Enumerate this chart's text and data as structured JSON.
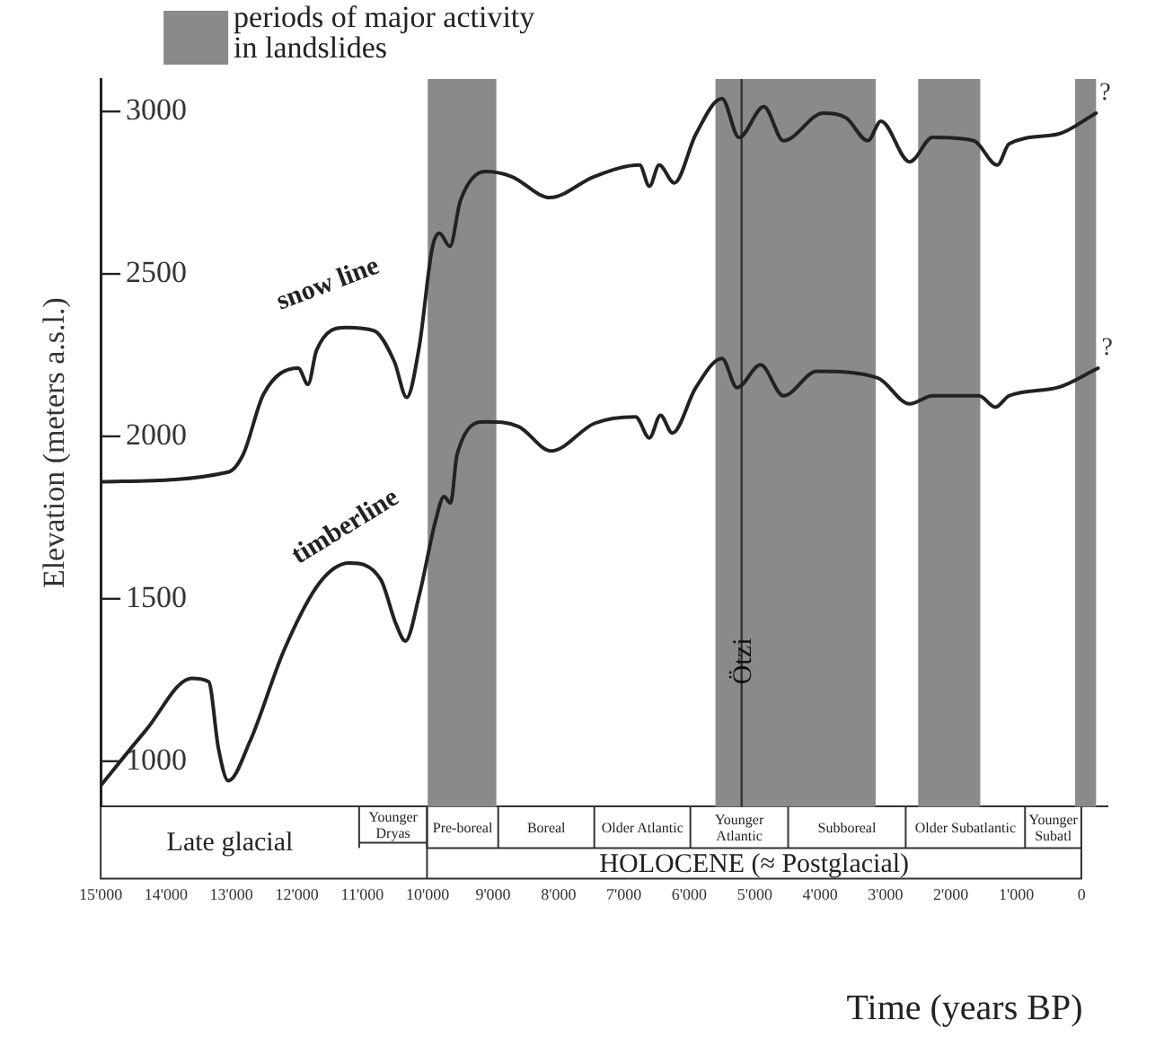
{
  "chart_data": {
    "type": "line",
    "xlabel": "Time (years BP)",
    "ylabel": "Elevation (meters a.s.l.)",
    "xlim": [
      15000,
      -400
    ],
    "ylim": [
      860,
      3100
    ],
    "xticks": [
      {
        "value": 15000,
        "label": "15'000"
      },
      {
        "value": 14000,
        "label": "14'000"
      },
      {
        "value": 13000,
        "label": "13'000"
      },
      {
        "value": 12000,
        "label": "12'000"
      },
      {
        "value": 11000,
        "label": "11'000"
      },
      {
        "value": 10000,
        "label": "10'000"
      },
      {
        "value": 9000,
        "label": "9'000"
      },
      {
        "value": 8000,
        "label": "8'000"
      },
      {
        "value": 7000,
        "label": "7'000"
      },
      {
        "value": 6000,
        "label": "6'000"
      },
      {
        "value": 5000,
        "label": "5'000"
      },
      {
        "value": 4000,
        "label": "4'000"
      },
      {
        "value": 3000,
        "label": "3'000"
      },
      {
        "value": 2000,
        "label": "2'000"
      },
      {
        "value": 1000,
        "label": "1'000"
      },
      0
    ],
    "yticks": [
      1000,
      1500,
      2000,
      2500,
      3000
    ],
    "grid": false,
    "legend": "top left",
    "series": [
      {
        "name": "snow line",
        "color": "#222222",
        "x": [
          15000,
          13050,
          12820,
          12510,
          11980,
          11830,
          11700,
          11250,
          10820,
          10510,
          10320,
          10130,
          9930,
          9820,
          9660,
          9500,
          9120,
          8720,
          8130,
          7450,
          6760,
          6610,
          6460,
          6230,
          5900,
          5500,
          5240,
          4860,
          4560,
          3950,
          3600,
          3270,
          3070,
          2630,
          2280,
          1650,
          1290,
          1110,
          370,
          -220
        ],
        "values": [
          1860,
          1890,
          1945,
          2130,
          2210,
          2160,
          2265,
          2335,
          2325,
          2230,
          2120,
          2275,
          2580,
          2625,
          2585,
          2725,
          2815,
          2800,
          2735,
          2800,
          2835,
          2770,
          2835,
          2780,
          2930,
          3040,
          2920,
          3015,
          2910,
          2995,
          2980,
          2910,
          2970,
          2845,
          2920,
          2910,
          2835,
          2900,
          2930,
          2995
        ]
      },
      {
        "name": "timberline",
        "color": "#222222",
        "x": [
          15000,
          14310,
          13610,
          13350,
          13200,
          13050,
          12720,
          12190,
          11650,
          11200,
          10720,
          10490,
          10340,
          10130,
          9880,
          9750,
          9650,
          9550,
          9120,
          8610,
          8110,
          7450,
          6820,
          6610,
          6440,
          6260,
          5900,
          5500,
          5270,
          4910,
          4560,
          4050,
          3120,
          2630,
          2280,
          1570,
          1320,
          1110,
          370,
          -250
        ],
        "values": [
          925,
          1095,
          1255,
          1245,
          1040,
          940,
          1060,
          1345,
          1550,
          1610,
          1560,
          1425,
          1370,
          1510,
          1740,
          1815,
          1795,
          1945,
          2045,
          2030,
          1955,
          2040,
          2060,
          1995,
          2065,
          2010,
          2150,
          2240,
          2150,
          2220,
          2125,
          2200,
          2180,
          2100,
          2125,
          2125,
          2090,
          2125,
          2150,
          2210
        ]
      }
    ],
    "bands": [
      {
        "axis": "x",
        "from": 10000,
        "to": 8950,
        "label": "periods of major activity in landslides",
        "color": "#8a8a8a"
      },
      {
        "axis": "x",
        "from": 5600,
        "to": 3150,
        "color": "#8a8a8a"
      },
      {
        "axis": "x",
        "from": 2500,
        "to": 1550,
        "color": "#8a8a8a"
      },
      {
        "axis": "x",
        "from": 100,
        "to": -220,
        "color": "#8a8a8a"
      }
    ],
    "ref_lines": [
      {
        "axis": "x",
        "value": 5200,
        "label": "Ötzi",
        "color": "#333333"
      }
    ],
    "annotations": [
      {
        "text": "?",
        "x": -220,
        "y": 2995
      },
      {
        "text": "?",
        "x": -250,
        "y": 2210
      },
      "Late glacial",
      "Younger Dryas",
      "Pre-boreal",
      "Boreal",
      "Older Atlantic",
      "Younger Atlantic",
      "Subboreal",
      "Older Subatlantic",
      "Younger Subatl",
      "HOLOCENE (≈ Postglacial)"
    ]
  }
}
